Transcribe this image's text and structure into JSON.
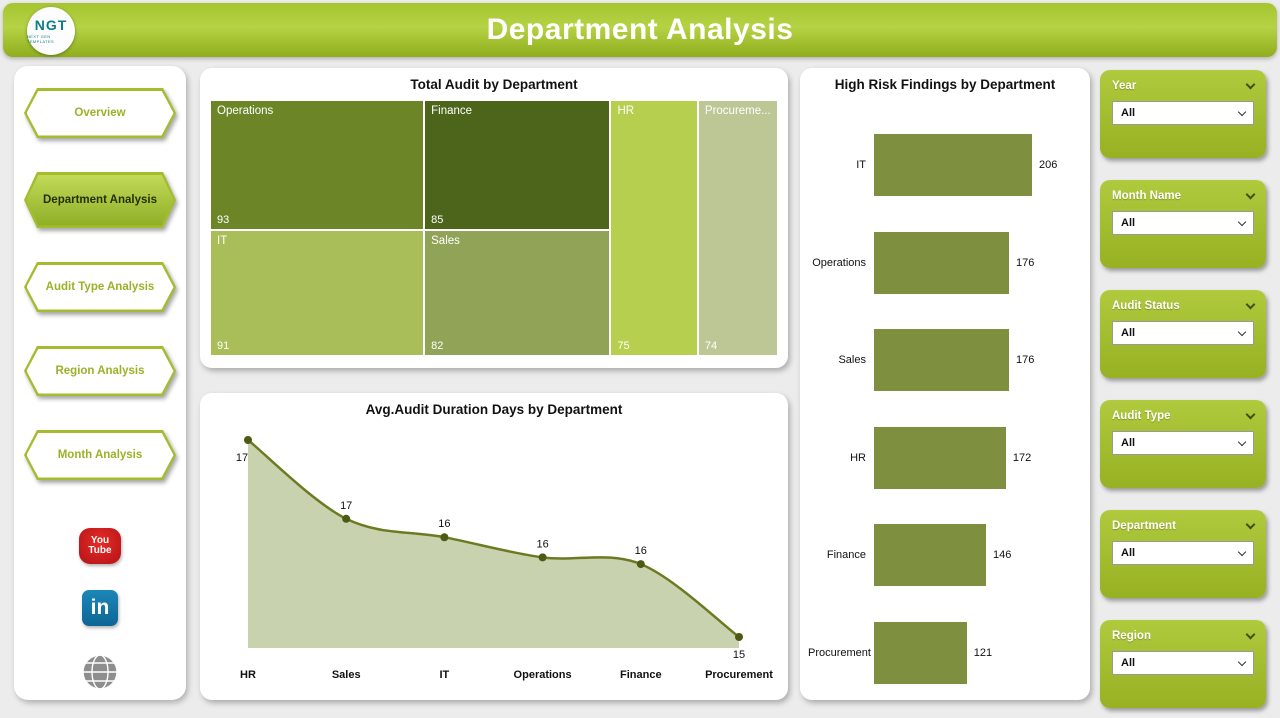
{
  "header": {
    "title": "Department Analysis",
    "logo": {
      "text": "NGT",
      "subtext": "NEXT GEN TEMPLATES"
    }
  },
  "sidebar": {
    "nav": [
      {
        "label": "Overview",
        "active": false
      },
      {
        "label": "Department Analysis",
        "active": true
      },
      {
        "label": "Audit Type Analysis",
        "active": false
      },
      {
        "label": "Region Analysis",
        "active": false
      },
      {
        "label": "Month Analysis",
        "active": false
      }
    ],
    "social": {
      "youtube_top": "You",
      "youtube_bottom": "Tube",
      "linkedin": "in"
    }
  },
  "chart_data": [
    {
      "type": "treemap",
      "title": "Total Audit by Department",
      "tiles": [
        {
          "label": "Operations",
          "value": 93,
          "color": "#6c8627"
        },
        {
          "label": "Finance",
          "value": 85,
          "color": "#4d651a"
        },
        {
          "label": "IT",
          "value": 91,
          "color": "#a9be58"
        },
        {
          "label": "Sales",
          "value": 82,
          "color": "#90a356"
        },
        {
          "label": "HR",
          "value": 75,
          "color": "#b7cf4f"
        },
        {
          "label": "Procureme...",
          "value": 74,
          "color": "#bcc795"
        }
      ]
    },
    {
      "type": "area",
      "title": "Avg.Audit Duration Days by Department",
      "categories": [
        "HR",
        "Sales",
        "IT",
        "Operations",
        "Finance",
        "Procurement"
      ],
      "values": [
        17,
        17,
        16,
        16,
        16,
        15
      ],
      "values_plot": [
        17.4,
        16.46,
        16.24,
        16.0,
        15.92,
        15.05
      ],
      "line_color": "#6c7b21",
      "fill_color": "#c9d2ae",
      "marker_color": "#4d5a16"
    },
    {
      "type": "bar",
      "title": "High Risk Findings by Department",
      "orientation": "horizontal",
      "categories": [
        "IT",
        "Operations",
        "Sales",
        "HR",
        "Finance",
        "Procurement"
      ],
      "values": [
        206,
        176,
        176,
        172,
        146,
        121
      ],
      "bar_color": "#7e903f",
      "xlim": [
        0,
        206
      ]
    }
  ],
  "filters": [
    {
      "label": "Year",
      "value": "All"
    },
    {
      "label": "Month Name",
      "value": "All"
    },
    {
      "label": "Audit Status",
      "value": "All"
    },
    {
      "label": "Audit Type",
      "value": "All"
    },
    {
      "label": "Department",
      "value": "All"
    },
    {
      "label": "Region",
      "value": "All"
    }
  ],
  "colors": {
    "accent": "#9ab227",
    "header_top": "#b4d243",
    "header_bottom": "#8fad1d"
  }
}
